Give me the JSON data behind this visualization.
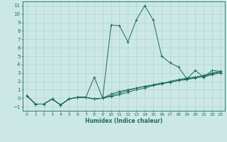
{
  "xlabel": "Humidex (Indice chaleur)",
  "xlim": [
    -0.5,
    23.5
  ],
  "ylim": [
    -1.5,
    11.5
  ],
  "xticks": [
    0,
    1,
    2,
    3,
    4,
    5,
    6,
    7,
    8,
    9,
    10,
    11,
    12,
    13,
    14,
    15,
    16,
    17,
    18,
    19,
    20,
    21,
    22,
    23
  ],
  "yticks": [
    -1,
    0,
    1,
    2,
    3,
    4,
    5,
    6,
    7,
    8,
    9,
    10,
    11
  ],
  "bg_color": "#cce8e5",
  "line_color": "#1a6b5a",
  "grid_color": "#b0d4d0",
  "series": [
    {
      "x": [
        0,
        1,
        2,
        3,
        4,
        5,
        6,
        7,
        8,
        9,
        10,
        11,
        12,
        13,
        14,
        15,
        16,
        17,
        18,
        19,
        20,
        21,
        22,
        23
      ],
      "y": [
        0.3,
        -0.7,
        -0.7,
        -0.1,
        -0.8,
        -0.1,
        0.1,
        0.1,
        2.5,
        0.0,
        8.7,
        8.6,
        6.7,
        9.3,
        11.0,
        9.3,
        5.0,
        4.2,
        3.7,
        2.3,
        3.3,
        2.5,
        3.3,
        3.2
      ]
    },
    {
      "x": [
        0,
        1,
        2,
        3,
        4,
        5,
        6,
        7,
        8,
        9,
        10,
        11,
        12,
        13,
        14,
        15,
        16,
        17,
        18,
        19,
        20,
        21,
        22,
        23
      ],
      "y": [
        0.3,
        -0.7,
        -0.7,
        -0.1,
        -0.8,
        -0.1,
        0.1,
        0.1,
        -0.1,
        0.0,
        0.5,
        0.8,
        1.0,
        1.2,
        1.4,
        1.5,
        1.7,
        1.9,
        2.1,
        2.3,
        2.5,
        2.5,
        2.8,
        3.0
      ]
    },
    {
      "x": [
        0,
        1,
        2,
        3,
        4,
        5,
        6,
        7,
        8,
        9,
        10,
        11,
        12,
        13,
        14,
        15,
        16,
        17,
        18,
        19,
        20,
        21,
        22,
        23
      ],
      "y": [
        0.3,
        -0.7,
        -0.7,
        -0.1,
        -0.8,
        -0.1,
        0.1,
        0.1,
        -0.1,
        0.0,
        0.3,
        0.6,
        0.9,
        1.2,
        1.4,
        1.6,
        1.8,
        1.9,
        2.1,
        2.2,
        2.4,
        2.6,
        2.9,
        3.1
      ]
    },
    {
      "x": [
        0,
        1,
        2,
        3,
        4,
        5,
        6,
        7,
        8,
        9,
        10,
        11,
        12,
        13,
        14,
        15,
        16,
        17,
        18,
        19,
        20,
        21,
        22,
        23
      ],
      "y": [
        0.3,
        -0.7,
        -0.7,
        -0.1,
        -0.8,
        -0.1,
        0.1,
        0.1,
        -0.1,
        0.0,
        0.2,
        0.4,
        0.7,
        1.0,
        1.2,
        1.5,
        1.7,
        2.0,
        2.2,
        2.4,
        2.5,
        2.7,
        3.0,
        3.2
      ]
    }
  ]
}
